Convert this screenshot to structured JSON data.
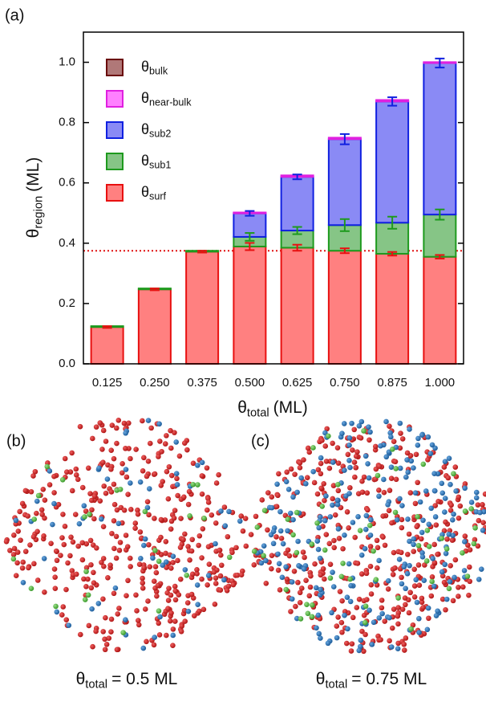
{
  "chart_data": {
    "type": "stacked_bar",
    "panel_label": "(a)",
    "symbol": "θ",
    "y_label": {
      "sub": "region",
      "unit": "(ML)"
    },
    "x_label": {
      "sub": "total",
      "unit": "(ML)"
    },
    "categories": [
      "0.125",
      "0.250",
      "0.375",
      "0.500",
      "0.625",
      "0.750",
      "0.875",
      "1.000"
    ],
    "series": [
      {
        "name": "surf",
        "color": "#ff8080",
        "edge": "#e81010",
        "values": [
          0.122,
          0.247,
          0.372,
          0.389,
          0.385,
          0.375,
          0.365,
          0.355
        ],
        "errors": [
          0.003,
          0.003,
          0.003,
          0.012,
          0.01,
          0.008,
          0.006,
          0.006
        ]
      },
      {
        "name": "sub1",
        "color": "#86c586",
        "edge": "#1e9a1e",
        "values": [
          0.003,
          0.003,
          0.003,
          0.032,
          0.057,
          0.085,
          0.103,
          0.14
        ],
        "errors": [
          0.0,
          0.0,
          0.0,
          0.013,
          0.012,
          0.02,
          0.02,
          0.017
        ]
      },
      {
        "name": "sub2",
        "color": "#8a8af5",
        "edge": "#1020e0",
        "values": [
          0.0,
          0.0,
          0.0,
          0.078,
          0.178,
          0.285,
          0.402,
          0.5025
        ],
        "errors": [
          0.0,
          0.0,
          0.0,
          0.008,
          0.008,
          0.017,
          0.014,
          0.015
        ]
      },
      {
        "name": "near-bulk",
        "color": "#ff80ff",
        "edge": "#e020e0",
        "values": [
          0.0,
          0.0,
          0.0,
          0.003,
          0.005,
          0.005,
          0.005,
          0.003
        ]
      },
      {
        "name": "bulk",
        "color": "#b07878",
        "edge": "#6a0a0a",
        "values": [
          0.0,
          0.0,
          0.0,
          0.0,
          0.0,
          0.0,
          0.0,
          0.0
        ]
      }
    ],
    "reference_line": {
      "value": 0.375,
      "color": "#e01010"
    },
    "ylim": [
      0,
      1.1
    ],
    "yticks": [
      {
        "value": 0.0,
        "label": "0.0"
      },
      0.2,
      0.4,
      0.6,
      0.8,
      {
        "value": 1.0,
        "label": "1.0"
      }
    ]
  },
  "panels": [
    {
      "label": "(b)",
      "caption_sub": "total",
      "caption_rest": "= 0.5 ML"
    },
    {
      "label": "(c)",
      "caption_sub": "total",
      "caption_rest": "= 0.75 ML"
    }
  ]
}
